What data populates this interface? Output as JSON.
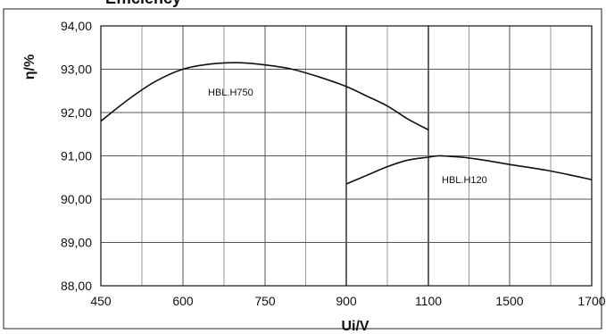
{
  "chart_data": {
    "type": "line",
    "title": "Efficiency",
    "xlabel": "Ui/V",
    "ylabel": "η/%",
    "x_tick_labels": [
      "450",
      "600",
      "750",
      "900",
      "1100",
      "1500",
      "1700"
    ],
    "y_tick_labels": [
      "88,00",
      "89,00",
      "90,00",
      "91,00",
      "92,00",
      "93,00",
      "94,00"
    ],
    "ylim": [
      88,
      94
    ],
    "grid": true,
    "series": [
      {
        "name": "HBL.H750",
        "x": [
          450,
          500,
          550,
          600,
          650,
          700,
          750,
          800,
          850,
          900,
          950,
          1000,
          1050,
          1100
        ],
        "y": [
          91.8,
          92.3,
          92.72,
          93.0,
          93.12,
          93.15,
          93.1,
          93.0,
          92.82,
          92.6,
          92.38,
          92.15,
          91.85,
          91.6
        ]
      },
      {
        "name": "HBL.H120",
        "x": [
          900,
          950,
          1000,
          1050,
          1100,
          1150,
          1200,
          1300,
          1400,
          1500,
          1600,
          1700
        ],
        "y": [
          90.35,
          90.55,
          90.75,
          90.9,
          90.97,
          91.0,
          90.99,
          90.95,
          90.88,
          90.8,
          90.65,
          90.45
        ]
      }
    ]
  }
}
